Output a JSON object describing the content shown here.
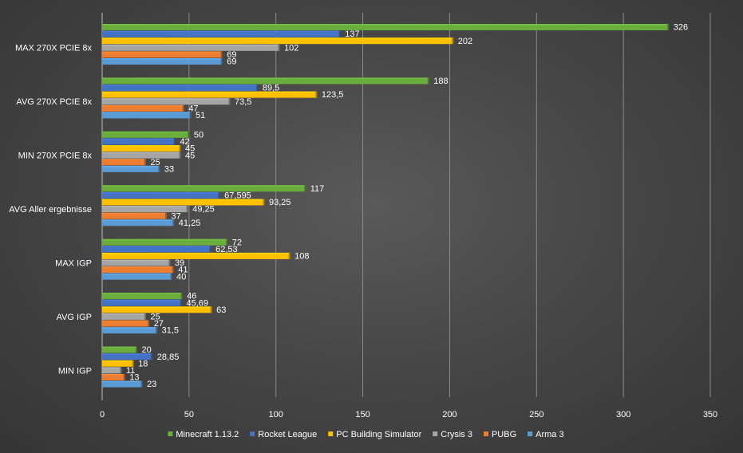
{
  "chart_data": {
    "type": "bar",
    "orientation": "horizontal",
    "categories": [
      "MAX  270X PCIE 8x",
      "AVG  270X PCIE 8x",
      "MIN  270X PCIE 8x",
      "AVG Aller ergebnisse",
      "MAX IGP",
      "AVG IGP",
      "MIN IGP"
    ],
    "series": [
      {
        "name": "Minecraft 1.13.2",
        "color": "#6aad3c",
        "values": [
          326,
          188,
          50,
          117,
          72,
          46,
          20
        ],
        "labels": [
          "326",
          "188",
          "50",
          "117",
          "72",
          "46",
          "20"
        ]
      },
      {
        "name": "Rocket League",
        "color": "#4472c4",
        "values": [
          137,
          89.5,
          42,
          67.595,
          62.53,
          45.69,
          28.85
        ],
        "labels": [
          "137",
          "89,5",
          "42",
          "67,595",
          "62,53",
          "45,69",
          "28,85"
        ]
      },
      {
        "name": "PC Building Simulator",
        "color": "#ffc000",
        "values": [
          202,
          123.5,
          45,
          93.25,
          108,
          63,
          18
        ],
        "labels": [
          "202",
          "123,5",
          "45",
          "93,25",
          "108",
          "63",
          "18"
        ]
      },
      {
        "name": "Crysis 3",
        "color": "#a5a5a5",
        "values": [
          102,
          73.5,
          45,
          49.25,
          39,
          25,
          11
        ],
        "labels": [
          "102",
          "73,5",
          "45",
          "49,25",
          "39",
          "25",
          "11"
        ]
      },
      {
        "name": "PUBG",
        "color": "#ed7d31",
        "values": [
          69,
          47,
          25,
          37,
          41,
          27,
          13
        ],
        "labels": [
          "69",
          "47",
          "25",
          "37",
          "41",
          "27",
          "13"
        ]
      },
      {
        "name": "Arma 3",
        "color": "#5b9bd5",
        "values": [
          69,
          51,
          33,
          41.25,
          40,
          31.5,
          23
        ],
        "labels": [
          "69",
          "51",
          "33",
          "41,25",
          "40",
          "31,5",
          "23"
        ]
      }
    ],
    "x_ticks": [
      "0",
      "50",
      "100",
      "150",
      "200",
      "250",
      "300",
      "350"
    ],
    "xlim": [
      0,
      350
    ],
    "title": "",
    "xlabel": "",
    "ylabel": "",
    "grid": true,
    "legend_position": "bottom",
    "background": "#474747",
    "gridline_color": "#8a8a8a",
    "text_color": "#ffffff"
  }
}
